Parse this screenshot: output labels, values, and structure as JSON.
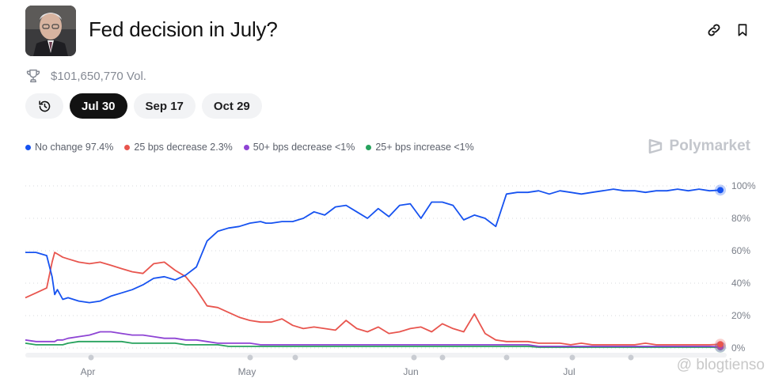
{
  "header": {
    "title": "Fed decision in July?",
    "volume": "$101,650,770 Vol."
  },
  "tabs": [
    {
      "label": "Jul 30",
      "active": true
    },
    {
      "label": "Sep 17",
      "active": false
    },
    {
      "label": "Oct 29",
      "active": false
    }
  ],
  "brand": "Polymarket",
  "watermark": "@ blogtienso",
  "icons": {
    "avatar": "portrait-photo",
    "trophy": "trophy-icon",
    "history": "history-icon",
    "link": "link-icon",
    "bookmark": "bookmark-icon"
  },
  "chart_data": {
    "type": "line",
    "x_ticks": [
      "Apr",
      "May",
      "Jun",
      "Jul"
    ],
    "y_ticks": [
      "0%",
      "20%",
      "40%",
      "60%",
      "80%",
      "100%"
    ],
    "ylim": [
      0,
      100
    ],
    "grid": true,
    "legend_position": "top-left",
    "x": [
      0,
      2,
      4,
      5,
      5.5,
      6,
      7,
      8,
      10,
      12,
      14,
      16,
      18,
      20,
      22,
      24,
      26,
      28,
      30,
      32,
      34,
      36,
      38,
      40,
      42,
      44,
      45,
      46,
      48,
      50,
      52,
      54,
      56,
      58,
      60,
      62,
      64,
      66,
      68,
      70,
      72,
      74,
      76,
      78,
      80,
      82,
      84,
      86,
      88,
      90,
      92,
      94,
      96,
      98,
      100,
      102,
      104,
      106,
      108,
      110,
      112,
      114,
      116,
      118,
      120,
      122,
      124,
      126,
      128,
      130
    ],
    "series": [
      {
        "name": "No change",
        "legend": "No change 97.4%",
        "color": "#1652f0",
        "values": [
          59,
          59,
          57,
          44,
          33,
          36,
          30,
          31,
          29,
          28,
          29,
          32,
          34,
          36,
          39,
          43,
          44,
          42,
          45,
          50,
          66,
          72,
          74,
          75,
          77,
          78,
          77,
          77,
          78,
          78,
          80,
          84,
          82,
          87,
          88,
          84,
          80,
          86,
          81,
          88,
          89,
          80,
          90,
          90,
          88,
          79,
          82,
          80,
          75,
          95,
          96,
          96,
          97,
          95,
          97,
          96,
          95,
          96,
          97,
          98,
          97,
          97,
          96,
          97,
          97,
          98,
          97,
          98,
          97,
          97.4
        ]
      },
      {
        "name": "25 bps decrease",
        "legend": "25 bps decrease 2.3%",
        "color": "#e8554e",
        "values": [
          31,
          34,
          37,
          53,
          59,
          58,
          56,
          55,
          53,
          52,
          53,
          51,
          49,
          47,
          46,
          52,
          53,
          48,
          44,
          36,
          26,
          25,
          22,
          19,
          17,
          16,
          16,
          16,
          18,
          14,
          12,
          13,
          12,
          11,
          17,
          12,
          10,
          13,
          9,
          10,
          12,
          13,
          10,
          15,
          12,
          10,
          21,
          9,
          5,
          4,
          4,
          4,
          3,
          3,
          3,
          2,
          3,
          2,
          2,
          2,
          2,
          2,
          3,
          2,
          2,
          2,
          2,
          2,
          2,
          2.3
        ]
      },
      {
        "name": "50+ bps decrease",
        "legend": "50+ bps decrease <1%",
        "color": "#8e44d4",
        "values": [
          5,
          4,
          4,
          4,
          4,
          5,
          5,
          6,
          7,
          8,
          10,
          10,
          9,
          8,
          8,
          7,
          6,
          6,
          5,
          5,
          4,
          3,
          3,
          3,
          3,
          2,
          2,
          2,
          2,
          2,
          2,
          2,
          2,
          2,
          2,
          2,
          2,
          2,
          2,
          2,
          2,
          2,
          2,
          2,
          2,
          2,
          2,
          2,
          2,
          2,
          2,
          2,
          1,
          1,
          1,
          1,
          1,
          1,
          1,
          1,
          1,
          1,
          1,
          1,
          1,
          1,
          1,
          1,
          1,
          0.8
        ]
      },
      {
        "name": "25+ bps increase",
        "legend": "25+ bps increase <1%",
        "color": "#27a25d",
        "values": [
          3,
          2,
          2,
          2,
          2,
          2,
          2,
          3,
          4,
          4,
          4,
          4,
          4,
          3,
          3,
          3,
          3,
          3,
          2,
          2,
          2,
          2,
          1,
          1,
          1,
          1,
          1,
          1,
          1,
          1,
          1,
          1,
          1,
          1,
          1,
          1,
          1,
          1,
          1,
          1,
          1,
          1,
          1,
          1,
          1,
          1,
          1,
          1,
          1,
          1,
          1,
          1,
          0.5,
          0.5,
          0.5,
          0.5,
          0.5,
          0.5,
          0.5,
          0.5,
          0.5,
          0.5,
          0.5,
          0.5,
          0.5,
          0.5,
          0.5,
          0.5,
          0.5,
          0.5
        ]
      }
    ]
  }
}
